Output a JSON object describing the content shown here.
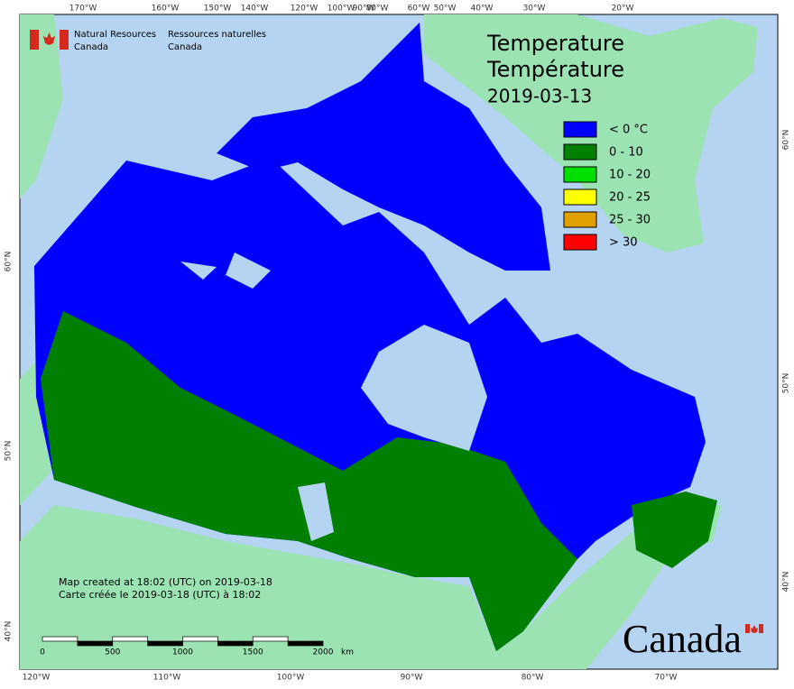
{
  "header": {
    "en_lines": [
      "Natural Resources",
      "Canada"
    ],
    "fr_lines": [
      "Ressources naturelles",
      "Canada"
    ]
  },
  "title": {
    "lines": [
      "Temperature",
      "Température",
      "2019-03-13"
    ]
  },
  "legend": {
    "items": [
      {
        "label": "< 0 °C",
        "color": "#0000ff"
      },
      {
        "label": "0 - 10",
        "color": "#007f00"
      },
      {
        "label": "10 - 20",
        "color": "#00e000"
      },
      {
        "label": "20 - 25",
        "color": "#ffff00"
      },
      {
        "label": "25 - 30",
        "color": "#e0a000"
      },
      {
        "label": "> 30",
        "color": "#ff0000"
      }
    ]
  },
  "graticule": {
    "top": [
      "170°W",
      "160°W",
      "150°W",
      "140°W",
      "120°W",
      "100°W",
      "90°W",
      "80°W",
      "60°W",
      "50°W",
      "40°W",
      "30°W",
      "20°W"
    ],
    "bottom": [
      "120°W",
      "110°W",
      "100°W",
      "90°W",
      "80°W",
      "70°W"
    ],
    "left": [
      "60°N",
      "50°N",
      "40°N"
    ],
    "right": [
      "60°N",
      "50°N",
      "40°N"
    ]
  },
  "scale_bar": {
    "labels": [
      "0",
      "500",
      "1000",
      "1500",
      "2000"
    ],
    "unit": "km"
  },
  "footer": {
    "lines": [
      "Map created at 18:02 (UTC) on 2019-03-18",
      "Carte créée le 2019-03-18 (UTC) à 18:02"
    ]
  },
  "wordmark": "Canada"
}
